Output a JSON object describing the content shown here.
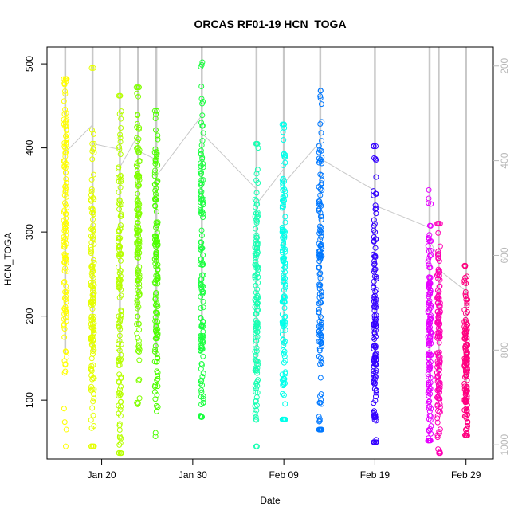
{
  "chart_data": {
    "type": "scatter",
    "title": "ORCAS RF01-19 HCN_TOGA",
    "xlabel": "Date",
    "ylabel": "HCN_TOGA",
    "xlim": [
      "2016-01-14",
      "2016-03-03"
    ],
    "ylim": [
      30,
      520
    ],
    "x_ticks": [
      {
        "value": "2016-01-20",
        "label": "Jan 20"
      },
      {
        "value": "2016-01-30",
        "label": "Jan 30"
      },
      {
        "value": "2016-02-09",
        "label": "Feb 09"
      },
      {
        "value": "2016-02-19",
        "label": "Feb 19"
      },
      {
        "value": "2016-02-29",
        "label": "Feb 29"
      }
    ],
    "y_ticks": [
      100,
      200,
      300,
      400,
      500
    ],
    "y2_axis": {
      "ticks": [
        200,
        400,
        600,
        800,
        1000
      ],
      "range_top": 160,
      "range_bottom": 1030,
      "reversed": true
    },
    "grid": false,
    "legend": "none",
    "series": [
      {
        "date": "2016-01-16",
        "color": "#FFFF00",
        "min": 45,
        "max": 482,
        "center": 320,
        "spread": 110
      },
      {
        "date": "2016-01-19",
        "color": "#E4FF00",
        "min": 45,
        "max": 495,
        "center": 230,
        "spread": 95
      },
      {
        "date": "2016-01-22",
        "color": "#B7FF00",
        "min": 37,
        "max": 462,
        "center": 230,
        "spread": 120
      },
      {
        "date": "2016-01-24",
        "color": "#80FF00",
        "min": 95,
        "max": 472,
        "center": 280,
        "spread": 90
      },
      {
        "date": "2016-01-26",
        "color": "#4DFF00",
        "min": 57,
        "max": 444,
        "center": 260,
        "spread": 95
      },
      {
        "date": "2016-01-31",
        "color": "#1BFF40",
        "min": 80,
        "max": 502,
        "center": 250,
        "spread": 100
      },
      {
        "date": "2016-02-06",
        "color": "#19FFB3",
        "min": 45,
        "max": 405,
        "center": 230,
        "spread": 95
      },
      {
        "date": "2016-02-09",
        "color": "#00FFEA",
        "min": 77,
        "max": 428,
        "center": 240,
        "spread": 90
      },
      {
        "date": "2016-02-13",
        "color": "#0078FF",
        "min": 65,
        "max": 468,
        "center": 260,
        "spread": 105
      },
      {
        "date": "2016-02-19",
        "color": "#3300FF",
        "min": 50,
        "max": 402,
        "center": 200,
        "spread": 90
      },
      {
        "date": "2016-02-25",
        "color": "#E600FF",
        "min": 52,
        "max": 350,
        "center": 180,
        "spread": 80
      },
      {
        "date": "2016-02-26",
        "color": "#FF00B3",
        "min": 37,
        "max": 310,
        "center": 160,
        "spread": 70
      },
      {
        "date": "2016-02-29",
        "color": "#FF007F",
        "min": 58,
        "max": 260,
        "center": 150,
        "spread": 50
      }
    ]
  }
}
